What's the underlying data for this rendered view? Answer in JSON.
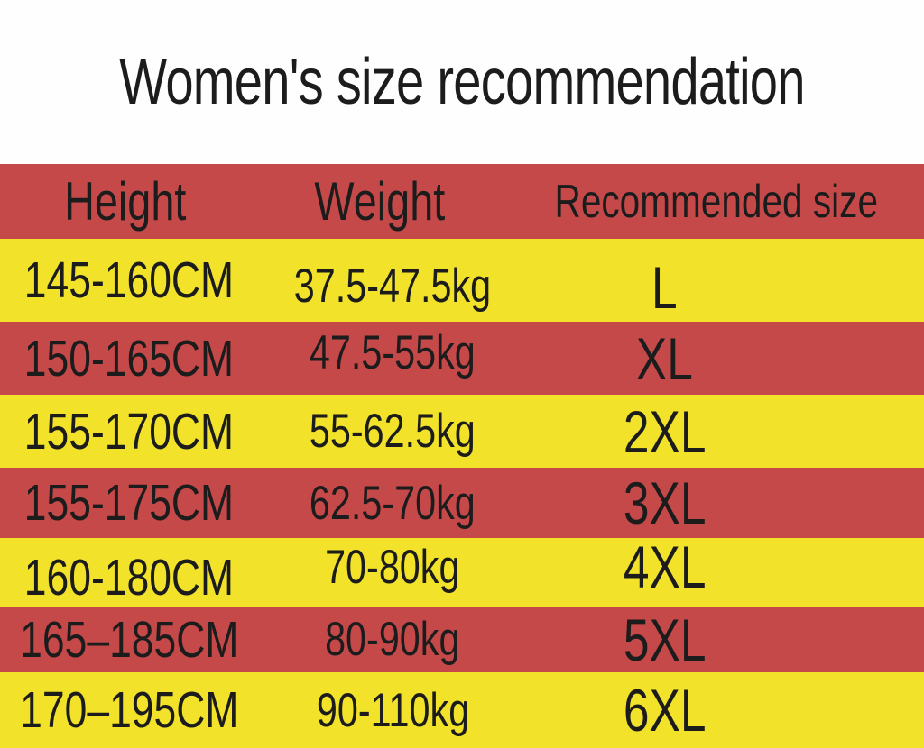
{
  "title": "Women's size recommendation",
  "table": {
    "headers": {
      "height": "Height",
      "weight": "Weight",
      "size": "Recommended size"
    },
    "rows": [
      {
        "height": "145-160CM",
        "weight": "37.5-47.5kg",
        "size": "L"
      },
      {
        "height": "150-165CM",
        "weight": "47.5-55kg",
        "size": "XL"
      },
      {
        "height": "155-170CM",
        "weight": "55-62.5kg",
        "size": "2XL"
      },
      {
        "height": "155-175CM",
        "weight": "62.5-70kg",
        "size": "3XL"
      },
      {
        "height": "160-180CM",
        "weight": "70-80kg",
        "size": "4XL"
      },
      {
        "height": "165–185CM",
        "weight": "80-90kg",
        "size": "5XL"
      },
      {
        "height": "170–195CM",
        "weight": "90-110kg",
        "size": "6XL"
      }
    ]
  },
  "colors": {
    "header_red": "#c6494a",
    "row_red": "#c6494a",
    "row_yellow": "#f2e32a",
    "text": "#1c1c1c",
    "page_background": "#fefefe"
  },
  "chart_data": {
    "type": "table",
    "title": "Women's size recommendation",
    "columns": [
      "Height",
      "Weight",
      "Recommended size"
    ],
    "rows": [
      [
        "145-160CM",
        "37.5-47.5kg",
        "L"
      ],
      [
        "150-165CM",
        "47.5-55kg",
        "XL"
      ],
      [
        "155-170CM",
        "55-62.5kg",
        "2XL"
      ],
      [
        "155-175CM",
        "62.5-70kg",
        "3XL"
      ],
      [
        "160-180CM",
        "70-80kg",
        "4XL"
      ],
      [
        "165–185CM",
        "80-90kg",
        "5XL"
      ],
      [
        "170–195CM",
        "90-110kg",
        "6XL"
      ]
    ],
    "layout": {
      "header_background": "#c6494a",
      "row_alternation": [
        "#f2e32a",
        "#c6494a"
      ],
      "gridlines": false
    }
  }
}
